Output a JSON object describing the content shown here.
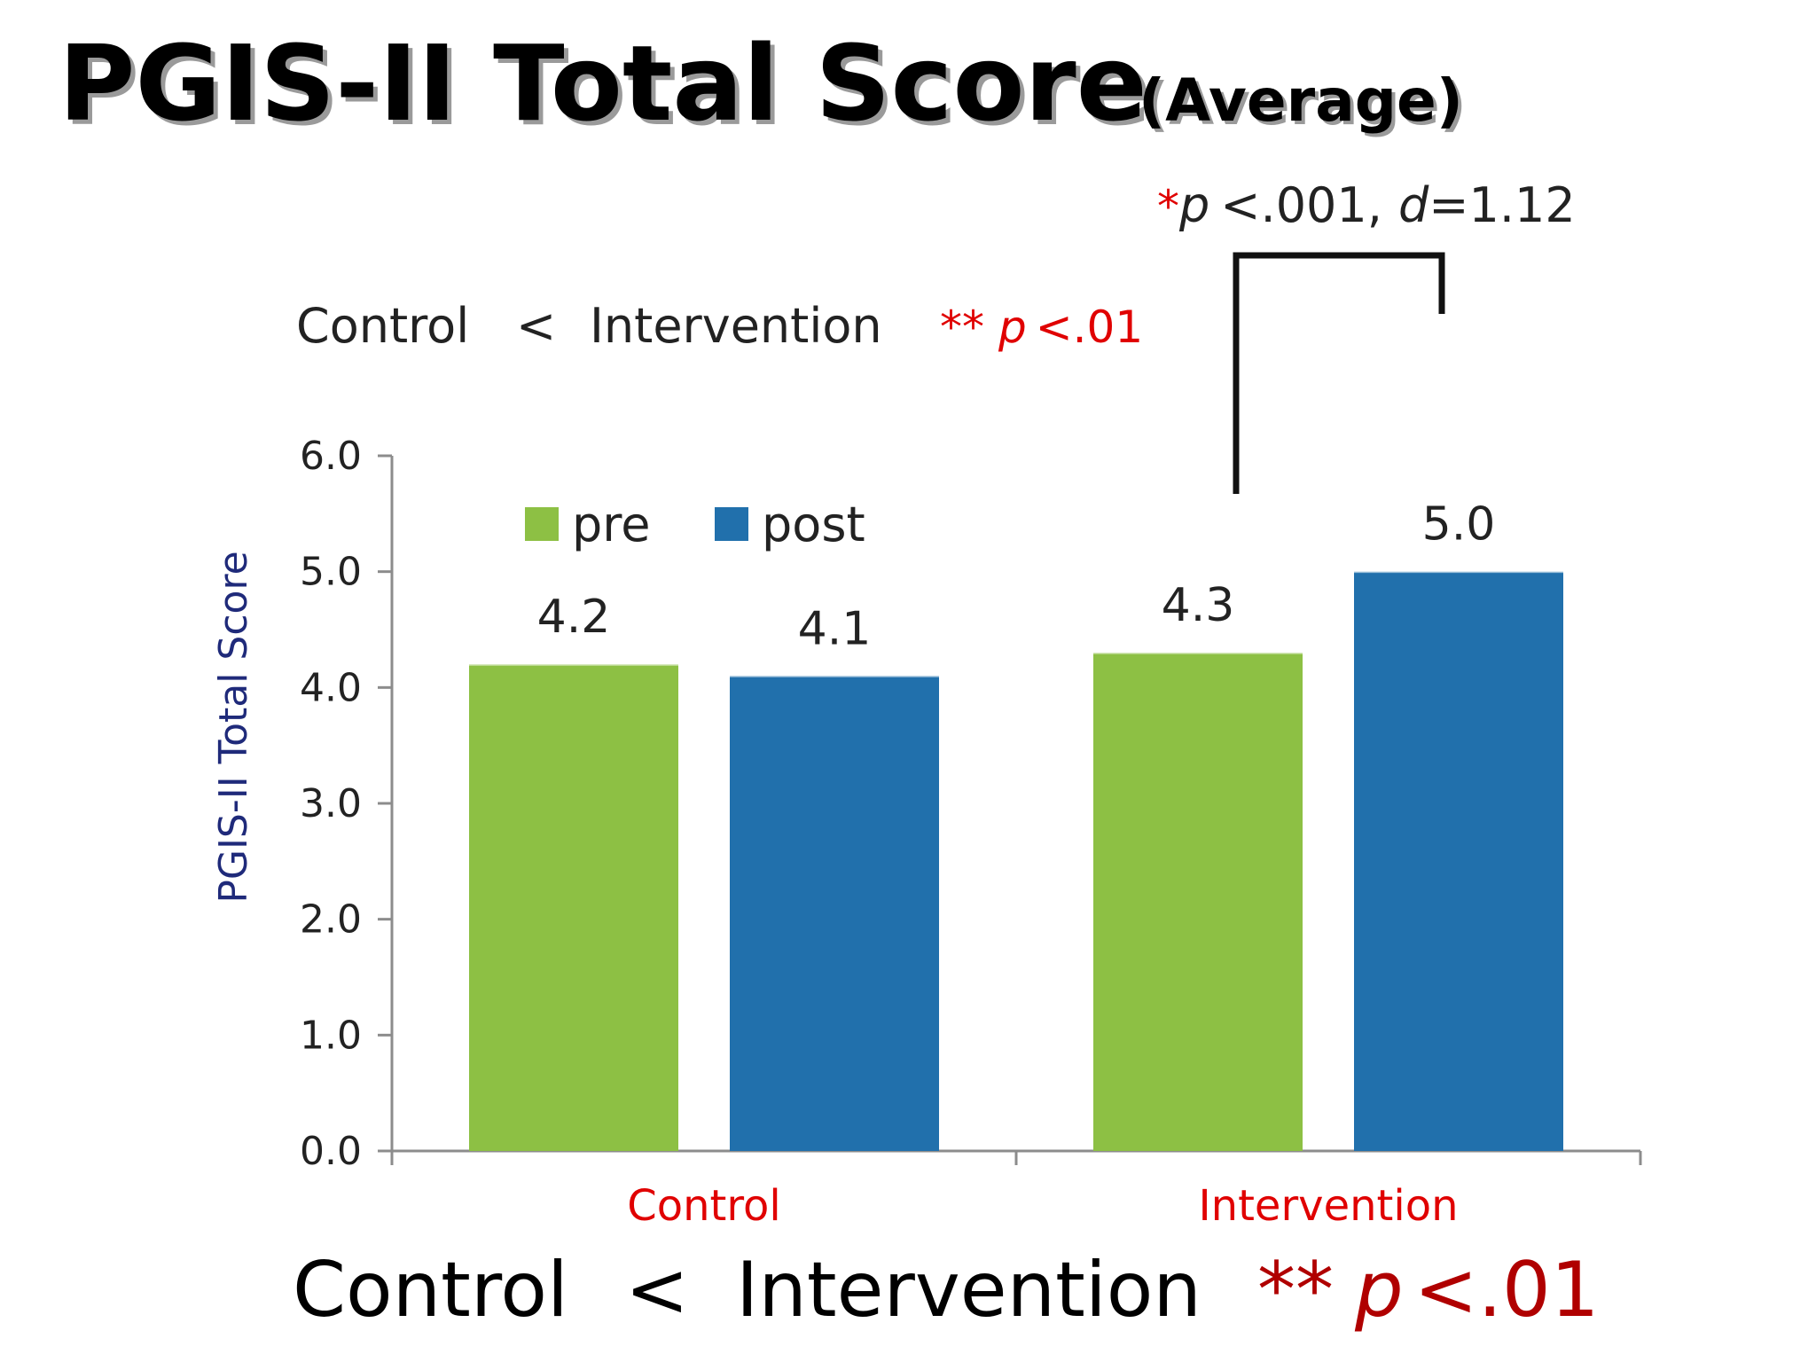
{
  "title": {
    "main": "PGIS-II Total Score",
    "sub": "(Average)"
  },
  "annotations": {
    "top_comparison": {
      "left": "Control",
      "op": "<",
      "right": "Intervention",
      "stars": "**",
      "p": "p",
      "p_value": "<.01"
    },
    "significance": {
      "star": "*",
      "p": "p",
      "p_value": "<.001,",
      "d": "d",
      "d_value": "=1.12"
    },
    "bottom_comparison": {
      "left": "Control",
      "op": "<",
      "right": "Intervention",
      "stars": "**",
      "p": "p",
      "p_value": "<.01"
    }
  },
  "chart_data": {
    "type": "bar",
    "title": "",
    "ylabel": "PGIS-II Total Score",
    "xlabel": "",
    "categories": [
      "Control",
      "Intervention"
    ],
    "series": [
      {
        "name": "pre",
        "color": "#8dc044",
        "values": [
          4.2,
          4.3
        ],
        "labels": [
          "4.2",
          "4.3"
        ]
      },
      {
        "name": "post",
        "color": "#2170ac",
        "values": [
          4.1,
          5.0
        ],
        "labels": [
          "4.1",
          "5.0"
        ]
      }
    ],
    "ylim": [
      0,
      6
    ],
    "yticks": [
      0,
      1,
      2,
      3,
      4,
      5,
      6
    ],
    "ytick_labels": [
      "0.0",
      "1.0",
      "2.0",
      "3.0",
      "4.0",
      "5.0",
      "6.0"
    ],
    "grid": false,
    "legend_position": "top-left",
    "category_label_color": "#e00000"
  }
}
